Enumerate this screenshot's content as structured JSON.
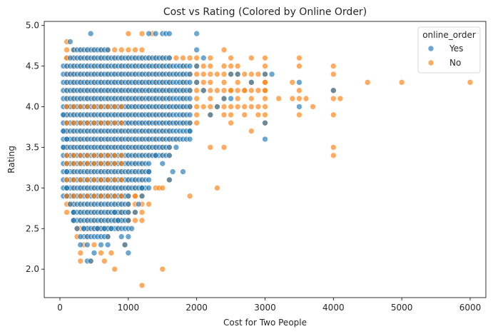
{
  "chart_data": {
    "type": "scatter",
    "title": "Cost vs Rating (Colored by Online Order)",
    "xlabel": "Cost for Two People",
    "ylabel": "Rating",
    "xlim": [
      -230,
      6230
    ],
    "ylim": [
      1.65,
      5.05
    ],
    "x_ticks": [
      0,
      1000,
      2000,
      3000,
      4000,
      5000,
      6000
    ],
    "y_ticks": [
      2.0,
      2.5,
      3.0,
      3.5,
      4.0,
      4.5,
      5.0
    ],
    "grid": false,
    "legend": {
      "title": "online_order",
      "placement": "top-right",
      "entries": [
        {
          "label": "Yes",
          "color": "#1f77b4"
        },
        {
          "label": "No",
          "color": "#ff7f0e"
        }
      ]
    },
    "series": [
      {
        "key": "yes",
        "color": "#1f77b4",
        "band": {
          "x_from": 50,
          "x_to": 1900,
          "x_step": 50
        },
        "points": [
          [
            50,
            3.9
          ],
          [
            50,
            3.7
          ],
          [
            50,
            3.5
          ],
          [
            100,
            3.6
          ],
          [
            100,
            3.2
          ],
          [
            100,
            3.0
          ],
          [
            100,
            2.9
          ],
          [
            150,
            2.8
          ],
          [
            150,
            4.6
          ],
          [
            150,
            4.8
          ],
          [
            200,
            2.7
          ],
          [
            200,
            2.6
          ],
          [
            250,
            2.5
          ],
          [
            300,
            2.4
          ],
          [
            300,
            2.3
          ],
          [
            350,
            2.5
          ],
          [
            400,
            2.1
          ],
          [
            400,
            2.3
          ],
          [
            450,
            4.9
          ],
          [
            450,
            2.1
          ],
          [
            500,
            2.2
          ],
          [
            550,
            2.5
          ],
          [
            600,
            2.3
          ],
          [
            650,
            2.5
          ],
          [
            700,
            2.3
          ],
          [
            750,
            2.5
          ],
          [
            800,
            2.7
          ],
          [
            850,
            2.6
          ],
          [
            900,
            2.4
          ],
          [
            950,
            2.3
          ],
          [
            1000,
            2.2
          ],
          [
            1000,
            2.4
          ],
          [
            1050,
            2.5
          ],
          [
            1100,
            2.7
          ],
          [
            1150,
            2.8
          ],
          [
            1200,
            2.9
          ],
          [
            1300,
            4.9
          ],
          [
            1400,
            4.9
          ],
          [
            1500,
            4.9
          ],
          [
            1550,
            4.9
          ],
          [
            1600,
            4.9
          ],
          [
            1500,
            3.3
          ],
          [
            1600,
            3.1
          ],
          [
            1650,
            3.2
          ],
          [
            1700,
            3.5
          ],
          [
            1800,
            3.2
          ],
          [
            1900,
            3.7
          ],
          [
            1400,
            3.4
          ],
          [
            1300,
            3.2
          ],
          [
            1200,
            3.0
          ],
          [
            2000,
            4.9
          ],
          [
            2000,
            4.7
          ],
          [
            2000,
            4.5
          ],
          [
            2000,
            4.3
          ],
          [
            2100,
            4.6
          ],
          [
            2100,
            4.2
          ],
          [
            2200,
            3.9
          ],
          [
            2300,
            4.0
          ],
          [
            2400,
            4.1
          ],
          [
            2500,
            4.4
          ],
          [
            2500,
            4.1
          ],
          [
            2600,
            4.4
          ],
          [
            2800,
            4.3
          ],
          [
            3000,
            4.4
          ],
          [
            3100,
            4.4
          ],
          [
            3000,
            3.6
          ],
          [
            3000,
            3.8
          ],
          [
            3500,
            4.3
          ],
          [
            3500,
            4.0
          ],
          [
            4000,
            4.2
          ]
        ]
      },
      {
        "key": "no",
        "color": "#ff7f0e",
        "band": {
          "x_from": 100,
          "x_to": 3000,
          "x_step": 100
        },
        "points": [
          [
            100,
            4.8
          ],
          [
            100,
            4.6
          ],
          [
            100,
            3.3
          ],
          [
            100,
            3.0
          ],
          [
            150,
            4.4
          ],
          [
            150,
            2.8
          ],
          [
            200,
            2.6
          ],
          [
            250,
            2.4
          ],
          [
            250,
            2.5
          ],
          [
            300,
            2.2
          ],
          [
            300,
            2.1
          ],
          [
            350,
            2.3
          ],
          [
            400,
            2.4
          ],
          [
            450,
            2.1
          ],
          [
            500,
            2.3
          ],
          [
            550,
            2.5
          ],
          [
            600,
            2.2
          ],
          [
            650,
            2.1
          ],
          [
            700,
            2.4
          ],
          [
            750,
            2.2
          ],
          [
            800,
            2.0
          ],
          [
            850,
            2.5
          ],
          [
            900,
            2.7
          ],
          [
            950,
            2.3
          ],
          [
            1000,
            4.9
          ],
          [
            1000,
            2.6
          ],
          [
            1100,
            2.9
          ],
          [
            1200,
            4.9
          ],
          [
            1200,
            1.8
          ],
          [
            1300,
            2.8
          ],
          [
            1350,
            4.9
          ],
          [
            1400,
            3.0
          ],
          [
            1450,
            3.0
          ],
          [
            1500,
            2.0
          ],
          [
            1500,
            3.0
          ],
          [
            1600,
            3.1
          ],
          [
            1700,
            3.6
          ],
          [
            1900,
            2.9
          ],
          [
            2100,
            4.5
          ],
          [
            2100,
            4.3
          ],
          [
            2200,
            4.6
          ],
          [
            2200,
            3.5
          ],
          [
            2300,
            3.0
          ],
          [
            2400,
            4.7
          ],
          [
            2400,
            3.5
          ],
          [
            2500,
            4.6
          ],
          [
            2500,
            4.5
          ],
          [
            2500,
            4.2
          ],
          [
            2500,
            3.9
          ],
          [
            2500,
            3.8
          ],
          [
            2600,
            4.5
          ],
          [
            2700,
            3.9
          ],
          [
            2700,
            4.2
          ],
          [
            2800,
            4.6
          ],
          [
            2800,
            3.7
          ],
          [
            2900,
            3.9
          ],
          [
            3000,
            4.6
          ],
          [
            3000,
            4.5
          ],
          [
            3000,
            4.3
          ],
          [
            3000,
            4.2
          ],
          [
            3000,
            3.9
          ],
          [
            3000,
            3.8
          ],
          [
            3200,
            4.1
          ],
          [
            3400,
            4.3
          ],
          [
            3400,
            4.1
          ],
          [
            3500,
            4.6
          ],
          [
            3500,
            4.5
          ],
          [
            3500,
            4.2
          ],
          [
            3500,
            4.1
          ],
          [
            3500,
            3.9
          ],
          [
            3600,
            4.1
          ],
          [
            3700,
            4.0
          ],
          [
            4000,
            4.5
          ],
          [
            4000,
            4.4
          ],
          [
            4000,
            4.2
          ],
          [
            4000,
            4.1
          ],
          [
            4000,
            3.9
          ],
          [
            4000,
            3.5
          ],
          [
            4000,
            3.4
          ],
          [
            4100,
            4.1
          ],
          [
            4500,
            4.3
          ],
          [
            5000,
            4.3
          ],
          [
            6000,
            4.3
          ]
        ]
      }
    ]
  }
}
